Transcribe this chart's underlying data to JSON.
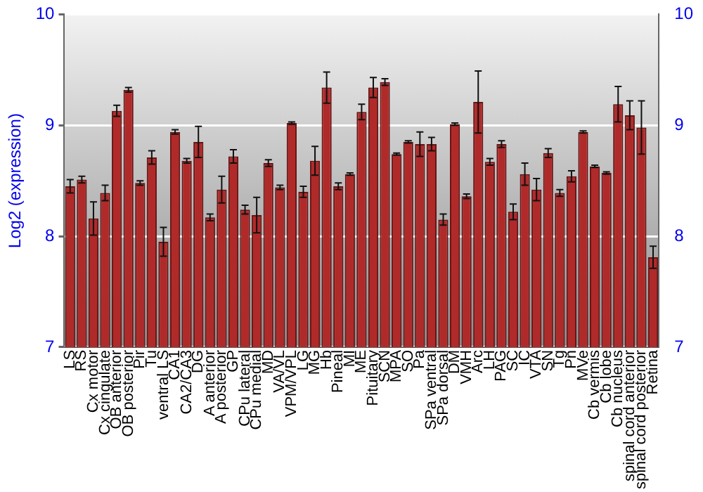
{
  "chart_data": {
    "type": "bar",
    "ylabel": "Log2 (expression)",
    "categories": [
      "LS",
      "RS",
      "Cx motor",
      "Cx cingulate",
      "OB anterior",
      "OB posterior",
      "Pir",
      "Tu",
      "ventral LS",
      "CA1",
      "CA2/CA3",
      "DG",
      "A anterior",
      "A posterior",
      "GP",
      "CPu lateral",
      "CPu medial",
      "MD",
      "VA/VL",
      "VPM/VPL",
      "LG",
      "MG",
      "Hb",
      "Pineal",
      "MI",
      "ME",
      "Pituitary",
      "SCN",
      "MPA",
      "SO",
      "Pa",
      "SPa ventral",
      "SPa dorsal",
      "DM",
      "VMH",
      "Arc",
      "LH",
      "PAG",
      "SC",
      "IC",
      "VTA",
      "SN",
      "Tg",
      "Pn",
      "MVe",
      "Cb vermis",
      "Cb lobe",
      "Cb nucleus",
      "spinal cord anterior",
      "spinal cord posterior",
      "Retina"
    ],
    "values": [
      8.45,
      8.51,
      8.16,
      8.39,
      9.13,
      9.32,
      8.48,
      8.71,
      7.95,
      8.94,
      8.68,
      8.85,
      8.17,
      8.42,
      8.72,
      8.24,
      8.19,
      8.66,
      8.44,
      9.02,
      8.4,
      8.68,
      9.34,
      8.45,
      8.56,
      9.12,
      9.34,
      9.39,
      8.74,
      8.85,
      8.83,
      8.83,
      8.15,
      9.01,
      8.36,
      9.21,
      8.67,
      8.83,
      8.22,
      8.56,
      8.42,
      8.75,
      8.39,
      8.54,
      8.94,
      8.63,
      8.57,
      9.19,
      9.09,
      8.98,
      7.81
    ],
    "errors": [
      0.06,
      0.03,
      0.15,
      0.07,
      0.05,
      0.02,
      0.02,
      0.06,
      0.13,
      0.02,
      0.02,
      0.14,
      0.03,
      0.12,
      0.06,
      0.04,
      0.16,
      0.03,
      0.02,
      0.01,
      0.05,
      0.13,
      0.14,
      0.03,
      0.01,
      0.07,
      0.09,
      0.03,
      0.01,
      0.01,
      0.11,
      0.06,
      0.05,
      0.01,
      0.02,
      0.28,
      0.03,
      0.03,
      0.07,
      0.1,
      0.1,
      0.04,
      0.03,
      0.05,
      0.01,
      0.01,
      0.01,
      0.16,
      0.13,
      0.24,
      0.1
    ],
    "color": "#b02a2a",
    "ylim": [
      7,
      10
    ],
    "yticks": [
      7,
      8,
      9,
      10
    ],
    "y2lim": [
      7,
      10
    ],
    "y2ticks": [
      7,
      8,
      9,
      10
    ],
    "grid": "y"
  }
}
